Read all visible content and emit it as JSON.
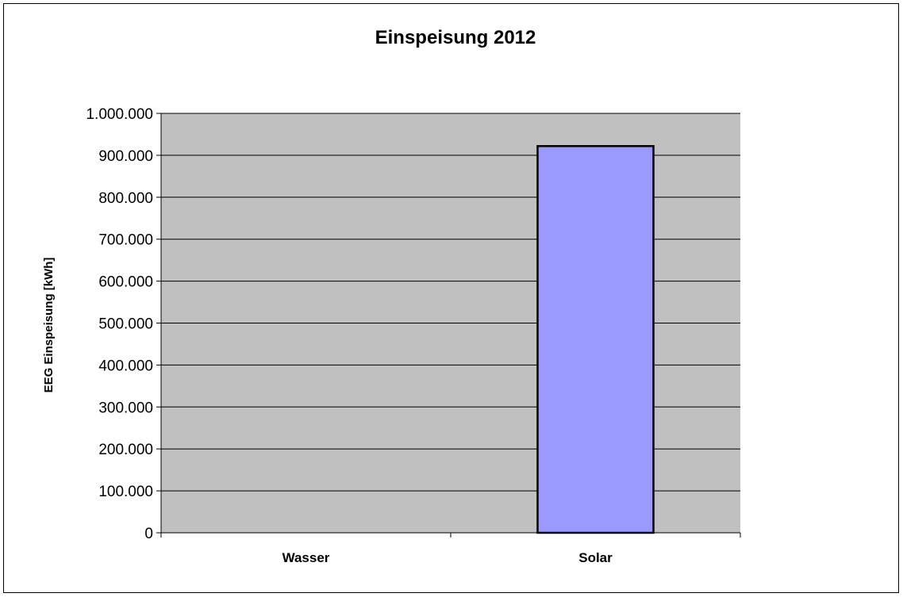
{
  "chart_data": {
    "type": "bar",
    "title": "Einspeisung 2012",
    "xlabel": "",
    "ylabel": "EEG Einspeisung [kWh]",
    "categories": [
      "Wasser",
      "Solar"
    ],
    "values": [
      0,
      922000
    ],
    "ylim": [
      0,
      1000000
    ],
    "yticks": [
      0,
      100000,
      200000,
      300000,
      400000,
      500000,
      600000,
      700000,
      800000,
      900000,
      1000000
    ],
    "ytick_labels": [
      "0",
      "100.000",
      "200.000",
      "300.000",
      "400.000",
      "500.000",
      "600.000",
      "700.000",
      "800.000",
      "900.000",
      "1.000.000"
    ],
    "grid": true,
    "legend": "none",
    "colors": {
      "plot_background": "#c0c0c0",
      "bar_fill": "#9999ff",
      "bar_stroke": "#000000",
      "gridline": "#000000"
    }
  }
}
